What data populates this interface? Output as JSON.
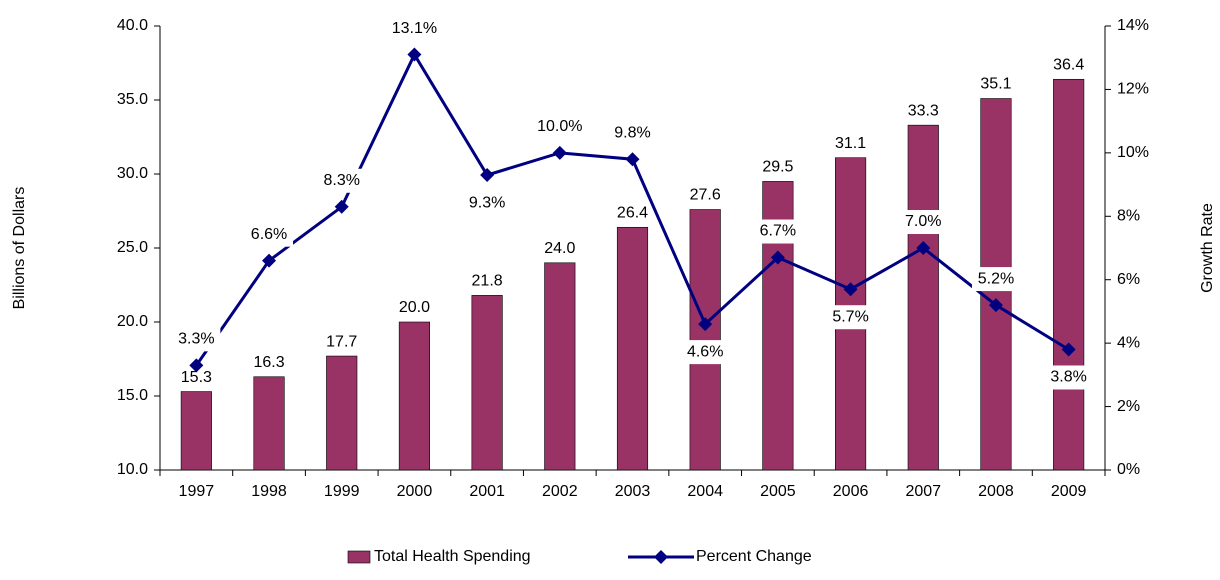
{
  "chart_data": {
    "type": "bar",
    "categories": [
      "1997",
      "1998",
      "1999",
      "2000",
      "2001",
      "2002",
      "2003",
      "2004",
      "2005",
      "2006",
      "2007",
      "2008",
      "2009"
    ],
    "series": [
      {
        "name": "Total Health Spending",
        "type": "bar",
        "color": "#993366",
        "values": [
          15.3,
          16.3,
          17.7,
          20.0,
          21.8,
          24.0,
          26.4,
          27.6,
          29.5,
          31.1,
          33.3,
          35.1,
          36.4
        ],
        "value_labels": [
          "15.3",
          "16.3",
          "17.7",
          "20.0",
          "21.8",
          "24.0",
          "26.4",
          "27.6",
          "29.5",
          "31.1",
          "33.3",
          "35.1",
          "36.4"
        ]
      },
      {
        "name": "Percent Change",
        "type": "line",
        "axis": "y2",
        "color": "#000080",
        "values": [
          3.3,
          6.6,
          8.3,
          13.1,
          9.3,
          10.0,
          9.8,
          4.6,
          6.7,
          5.7,
          7.0,
          5.2,
          3.8
        ],
        "value_labels": [
          "3.3%",
          "6.6%",
          "8.3%",
          "13.1%",
          "9.3%",
          "10.0%",
          "9.8%",
          "4.6%",
          "6.7%",
          "5.7%",
          "7.0%",
          "5.2%",
          "3.8%"
        ]
      }
    ],
    "ylabel": "Billions of Dollars",
    "y2label": "Growth Rate",
    "ylim": [
      10,
      40
    ],
    "yticks": [
      {
        "value": 10,
        "label": "10.0"
      },
      {
        "value": 15,
        "label": "15.0"
      },
      {
        "value": 20,
        "label": "20.0"
      },
      {
        "value": 25,
        "label": "25.0"
      },
      {
        "value": 30,
        "label": "30.0"
      },
      {
        "value": 35,
        "label": "35.0"
      },
      {
        "value": 40,
        "label": "40.0"
      }
    ],
    "y2lim": [
      0,
      14
    ],
    "y2ticks": [
      {
        "value": 0,
        "label": "0%"
      },
      {
        "value": 2,
        "label": "2%"
      },
      {
        "value": 4,
        "label": "4%"
      },
      {
        "value": 6,
        "label": "6%"
      },
      {
        "value": 8,
        "label": "8%"
      },
      {
        "value": 10,
        "label": "10%"
      },
      {
        "value": 12,
        "label": "12%"
      },
      {
        "value": 14,
        "label": "14%"
      }
    ],
    "grid": false,
    "legend": "bottom"
  }
}
